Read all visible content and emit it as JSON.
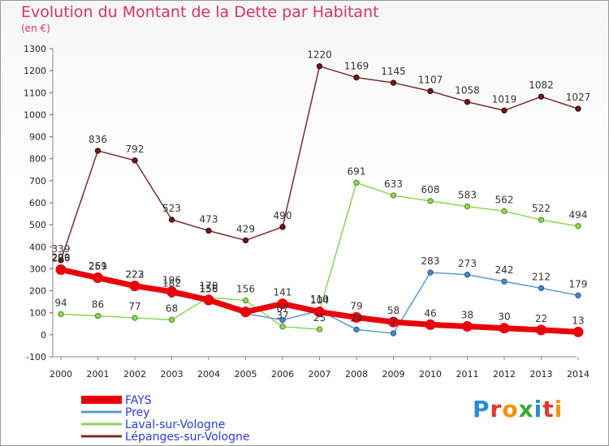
{
  "title": "Evolution du Montant de la Dette par Habitant",
  "subtitle": "(en €)",
  "logo": {
    "text": "Proxiti",
    "colors": [
      "#2a8bd6",
      "#e6332a",
      "#f39200",
      "#3aa935",
      "#2a8bd6",
      "#e6332a",
      "#f39200"
    ]
  },
  "chart_data": {
    "type": "line",
    "categories": [
      "2000",
      "2001",
      "2002",
      "2003",
      "2004",
      "2005",
      "2006",
      "2007",
      "2008",
      "2009",
      "2010",
      "2011",
      "2012",
      "2013",
      "2014"
    ],
    "ylim": [
      -100,
      1300
    ],
    "yticks": [
      -100,
      0,
      100,
      200,
      300,
      400,
      500,
      600,
      700,
      800,
      900,
      1000,
      1100,
      1200,
      1300
    ],
    "grid": false,
    "legend_position": "bottom-left",
    "series": [
      {
        "name": "FAYS",
        "color": "#e8000b",
        "width": 7,
        "marker_fill": "#e8000b",
        "marker_stroke": "#e8000b",
        "values": [
          296,
          259,
          222,
          196,
          158,
          104,
          141,
          104,
          79,
          58,
          46,
          38,
          30,
          22,
          13
        ],
        "labels": [
          "296",
          "259",
          "222",
          "196",
          "158",
          "",
          "141",
          "104",
          "79",
          "58",
          "46",
          "38",
          "30",
          "22",
          "13"
        ]
      },
      {
        "name": "Prey",
        "color": "#5b9bd5",
        "width": 1.5,
        "marker_fill": "#4f86c6",
        "marker_stroke": "#2e5a8f",
        "values": [
          299,
          261,
          223,
          182,
          156,
          96,
          67,
          110,
          24,
          7,
          283,
          273,
          242,
          212,
          179
        ],
        "labels": [
          "299",
          "261",
          "223",
          "182",
          "156",
          "",
          "67",
          "110",
          "24",
          "7",
          "283",
          "273",
          "242",
          "212",
          "179"
        ]
      },
      {
        "name": "Laval-sur-Vologne",
        "color": "#8ed45a",
        "width": 1.5,
        "marker_fill": "#8ed45a",
        "marker_stroke": "#4e8f25",
        "values": [
          94,
          86,
          77,
          68,
          170,
          156,
          37,
          25,
          null,
          null,
          null,
          null,
          null,
          null,
          null
        ],
        "labels": [
          "94",
          "86",
          "77",
          "68",
          "170",
          "156",
          "37",
          "25",
          "",
          "",
          "",
          "",
          "",
          "",
          ""
        ]
      },
      {
        "name": "Laval-sur-Vologne",
        "color": "#8ed45a",
        "width": 1.5,
        "marker_fill": "#8ed45a",
        "marker_stroke": "#4e8f25",
        "legend": false,
        "values": [
          null,
          null,
          null,
          null,
          null,
          null,
          null,
          110,
          691,
          633,
          608,
          583,
          562,
          522,
          494
        ],
        "labels": [
          "",
          "",
          "",
          "",
          "",
          "",
          "",
          "",
          "691",
          "633",
          "608",
          "583",
          "562",
          "522",
          "494"
        ]
      },
      {
        "name": "Lépanges-sur-Vologne",
        "color": "#7a2a2a",
        "width": 1.5,
        "marker_fill": "#6b1a1a",
        "marker_stroke": "#3a0a0a",
        "values": [
          339,
          836,
          792,
          523,
          473,
          429,
          490,
          1220,
          1169,
          1145,
          1107,
          1058,
          1019,
          1082,
          1027
        ],
        "labels": [
          "339",
          "836",
          "792",
          "523",
          "473",
          "429",
          "490",
          "1220",
          "1169",
          "1145",
          "1107",
          "1058",
          "1019",
          "1082",
          "1027"
        ]
      }
    ],
    "legend": [
      {
        "name": "FAYS",
        "color": "#e8000b",
        "text_color": "#2b3bd9"
      },
      {
        "name": "Prey",
        "color": "#5b9bd5",
        "text_color": "#2b3bd9"
      },
      {
        "name": "Laval-sur-Vologne",
        "color": "#8ed45a",
        "text_color": "#2b3bd9"
      },
      {
        "name": "Lépanges-sur-Vologne",
        "color": "#7a2a2a",
        "text_color": "#2b3bd9"
      }
    ]
  }
}
